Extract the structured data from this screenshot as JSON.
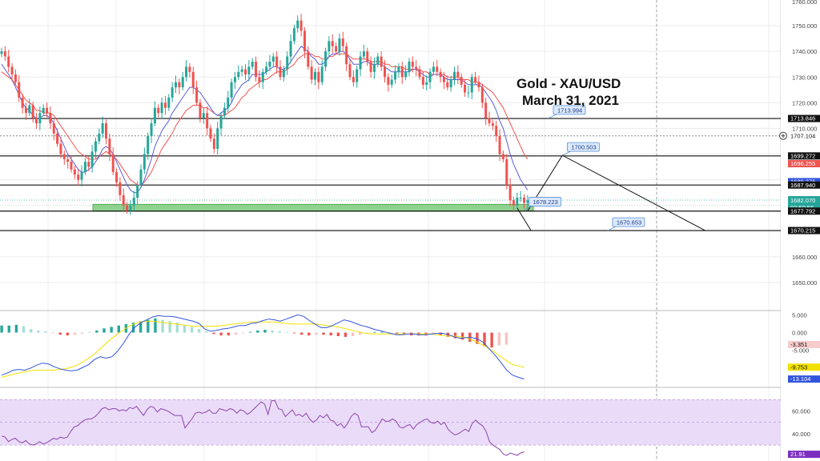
{
  "title": {
    "line1": "Gold - XAU/USD",
    "line2": "March 31, 2021"
  },
  "colors": {
    "up": "#26a69a",
    "down": "#ef5350",
    "ema_fast": "#5b5bd6",
    "ema_slow": "#ef5350",
    "zone": "#8fd18f",
    "rsi_band": "#eadcf8",
    "macd_line": "#3355dd",
    "signal_line": "#f2e000",
    "grid": "#ececec",
    "callout": "#dbe9fb"
  },
  "chart_data": {
    "type": "candlestick",
    "price_axis": {
      "ylim": [
        1640,
        1760
      ],
      "ticks": [
        "1750.000",
        "1740.000",
        "1730.000",
        "1720.000",
        "1710.000",
        "1660.000",
        "1650.000"
      ]
    },
    "ohlc_closes": [
      1740,
      1738,
      1734,
      1731,
      1728,
      1722,
      1718,
      1716,
      1719,
      1714,
      1712,
      1716,
      1718,
      1716,
      1712,
      1708,
      1704,
      1700,
      1698,
      1697,
      1694,
      1692,
      1690,
      1693,
      1697,
      1695,
      1701,
      1705,
      1708,
      1712,
      1706,
      1700,
      1693,
      1689,
      1684,
      1680,
      1678,
      1680,
      1683,
      1688,
      1694,
      1700,
      1707,
      1712,
      1718,
      1716,
      1720,
      1718,
      1722,
      1726,
      1728,
      1726,
      1730,
      1734,
      1732,
      1726,
      1720,
      1714,
      1716,
      1710,
      1706,
      1702,
      1710,
      1715,
      1718,
      1722,
      1728,
      1730,
      1732,
      1733,
      1731,
      1734,
      1736,
      1730,
      1728,
      1732,
      1734,
      1736,
      1738,
      1734,
      1730,
      1733,
      1738,
      1744,
      1749,
      1752,
      1748,
      1740,
      1734,
      1729,
      1732,
      1728,
      1734,
      1740,
      1744,
      1742,
      1740,
      1745,
      1742,
      1735,
      1730,
      1728,
      1733,
      1738,
      1740,
      1736,
      1732,
      1735,
      1738,
      1734,
      1730,
      1727,
      1729,
      1732,
      1734,
      1730,
      1732,
      1736,
      1734,
      1733,
      1730,
      1727,
      1728,
      1732,
      1734,
      1732,
      1730,
      1728,
      1726,
      1729,
      1732,
      1730,
      1727,
      1724,
      1724,
      1730,
      1728,
      1726,
      1720,
      1714,
      1712,
      1711,
      1707,
      1700,
      1698,
      1688,
      1682,
      1680,
      1683,
      1683,
      1681,
      1682
    ],
    "ema_fast_values": [
      1735,
      1733,
      1731,
      1729,
      1726,
      1723,
      1720,
      1718,
      1717,
      1715,
      1714,
      1714,
      1715,
      1715,
      1714,
      1712,
      1709,
      1706,
      1703,
      1700,
      1698,
      1696,
      1694,
      1693,
      1693,
      1694,
      1695,
      1697,
      1699,
      1702,
      1703,
      1702,
      1700,
      1697,
      1694,
      1691,
      1688,
      1686,
      1685,
      1685,
      1687,
      1690,
      1694,
      1698,
      1703,
      1706,
      1709,
      1711,
      1713,
      1716,
      1718,
      1720,
      1722,
      1724,
      1726,
      1726,
      1725,
      1724,
      1722,
      1720,
      1718,
      1716,
      1715,
      1716,
      1717,
      1718,
      1720,
      1723,
      1725,
      1727,
      1728,
      1729,
      1731,
      1731,
      1731,
      1731,
      1732,
      1733,
      1734,
      1734,
      1733,
      1733,
      1734,
      1736,
      1738,
      1740,
      1742,
      1741,
      1740,
      1738,
      1737,
      1735,
      1735,
      1736,
      1738,
      1739,
      1739,
      1740,
      1740,
      1739,
      1737,
      1735,
      1735,
      1735,
      1736,
      1736,
      1735,
      1735,
      1735,
      1735,
      1734,
      1733,
      1732,
      1732,
      1732,
      1732,
      1732,
      1732,
      1733,
      1733,
      1732,
      1731,
      1730,
      1730,
      1731,
      1731,
      1731,
      1730,
      1729,
      1729,
      1729,
      1729,
      1729,
      1728,
      1727,
      1727,
      1727,
      1727,
      1726,
      1724,
      1722,
      1720,
      1717,
      1713,
      1710,
      1705,
      1700,
      1696,
      1693,
      1690,
      1688,
      1686
    ],
    "ema_slow_values": [
      1732,
      1731,
      1730,
      1729,
      1727,
      1725,
      1723,
      1721,
      1720,
      1719,
      1717,
      1717,
      1716,
      1716,
      1716,
      1715,
      1713,
      1711,
      1709,
      1707,
      1705,
      1703,
      1701,
      1700,
      1699,
      1698,
      1698,
      1698,
      1699,
      1700,
      1701,
      1700,
      1699,
      1698,
      1696,
      1694,
      1692,
      1690,
      1689,
      1688,
      1688,
      1689,
      1691,
      1693,
      1696,
      1699,
      1702,
      1704,
      1706,
      1708,
      1711,
      1713,
      1715,
      1717,
      1718,
      1719,
      1719,
      1719,
      1718,
      1718,
      1717,
      1716,
      1715,
      1715,
      1715,
      1716,
      1717,
      1718,
      1720,
      1722,
      1723,
      1725,
      1726,
      1727,
      1728,
      1729,
      1729,
      1730,
      1731,
      1732,
      1732,
      1732,
      1733,
      1734,
      1735,
      1737,
      1738,
      1739,
      1739,
      1739,
      1738,
      1738,
      1737,
      1737,
      1738,
      1738,
      1739,
      1739,
      1739,
      1739,
      1738,
      1737,
      1737,
      1737,
      1737,
      1737,
      1736,
      1736,
      1736,
      1736,
      1735,
      1735,
      1734,
      1734,
      1734,
      1734,
      1733,
      1733,
      1733,
      1733,
      1733,
      1732,
      1732,
      1731,
      1731,
      1731,
      1731,
      1731,
      1730,
      1730,
      1730,
      1730,
      1729,
      1729,
      1729,
      1728,
      1728,
      1728,
      1727,
      1726,
      1725,
      1724,
      1722,
      1720,
      1718,
      1715,
      1712,
      1709,
      1706,
      1703,
      1700,
      1698
    ],
    "horizontal_levels": [
      1713.846,
      1707.104,
      1699.272,
      1687.94,
      1677.792,
      1670.215
    ],
    "support_zone": [
      1677.792,
      1680.4
    ],
    "callouts": [
      {
        "text": "1713.994",
        "anchor": [
          157,
          1713.9
        ]
      },
      {
        "text": "1700.503",
        "anchor": [
          161,
          1699.5
        ]
      },
      {
        "text": "1678.223",
        "anchor": [
          150,
          1678.2
        ]
      },
      {
        "text": "1670.653",
        "anchor": [
          174,
          1670.2
        ]
      }
    ],
    "projection_path": [
      [
        151,
        1677.8
      ],
      [
        161,
        1699.5
      ],
      [
        202,
        1670.2
      ]
    ],
    "projection_drop": [
      [
        148,
        1679
      ],
      [
        152,
        1670.2
      ]
    ],
    "price_tags": [
      {
        "text": "1713.846",
        "value": 1713.846,
        "bg": "#111111",
        "fg": "#ffffff"
      },
      {
        "text": "1707.104",
        "value": 1707.104,
        "bg": "#ffffff",
        "fg": "#111111"
      },
      {
        "text": "1699.272",
        "value": 1699.272,
        "bg": "#111111",
        "fg": "#ffffff"
      },
      {
        "text": "1696.255",
        "value": 1696.255,
        "bg": "#ef5350",
        "fg": "#ffffff"
      },
      {
        "text": "1689.276",
        "value": 1689.276,
        "bg": "#3355dd",
        "fg": "#ffffff"
      },
      {
        "text": "1687.940",
        "value": 1687.94,
        "bg": "#111111",
        "fg": "#ffffff"
      },
      {
        "text": "1682.070",
        "value": 1682.07,
        "bg": "#26a69a",
        "fg": "#ffffff",
        "sub": "02:50:56"
      },
      {
        "text": "1677.792",
        "value": 1677.792,
        "bg": "#111111",
        "fg": "#ffffff"
      },
      {
        "text": "1670.215",
        "value": 1670.215,
        "bg": "#111111",
        "fg": "#ffffff"
      }
    ],
    "top_tick": "1760.000",
    "macd": {
      "ylim": [
        -15,
        6
      ],
      "ticks": [
        "5.000",
        "0.000",
        "-5.000"
      ],
      "tags": [
        {
          "text": "-3.351",
          "value": -3.351,
          "bg": "#f8cccc",
          "fg": "#111111"
        },
        {
          "text": "-9.753",
          "value": -9.753,
          "bg": "#f2e000",
          "fg": "#111111"
        },
        {
          "text": "-13.104",
          "value": -13.104,
          "bg": "#3355dd",
          "fg": "#ffffff"
        }
      ],
      "histogram": [
        2,
        2,
        2.2,
        1.8,
        1,
        0.6,
        0.4,
        -0.2,
        -0.6,
        -0.8,
        -0.6,
        -0.3,
        0.2,
        0.6,
        1.2,
        1.6,
        2,
        2.4,
        2.8,
        3.2,
        3.6,
        4,
        3.6,
        3.2,
        2.8,
        2,
        1.6,
        1,
        0.4,
        -0.4,
        -0.8,
        -0.8,
        -0.6,
        -0.2,
        0.2,
        0.6,
        0.8,
        0.6,
        0.4,
        0.2,
        -0.2,
        -0.6,
        -0.8,
        -0.6,
        -0.6,
        -0.8,
        -1,
        -1.2,
        -1,
        -0.6,
        -0.2,
        0.2,
        0.2,
        0,
        -0.4,
        -0.6,
        -0.8,
        -0.8,
        -0.8,
        -0.6,
        -0.8,
        -1.2,
        -1.6,
        -2,
        -2.6,
        -3.2,
        -3.8,
        -4.2,
        -3.6,
        -3.4
      ],
      "macd_line": [
        -12,
        -11.4,
        -10.6,
        -10.4,
        -10.6,
        -10,
        -9.2,
        -8.6,
        -8.8,
        -9.6,
        -10.2,
        -10.6,
        -10.8,
        -10.6,
        -9.8,
        -9,
        -7.6,
        -6.8,
        -7.2,
        -6.8,
        -5.2,
        -3,
        -0.4,
        1.6,
        2.8,
        3.6,
        4.4,
        4.8,
        4.6,
        4.6,
        4.4,
        4,
        3.6,
        3.2,
        2.6,
        1,
        0.4,
        0.6,
        1,
        1.2,
        1.6,
        2,
        2,
        2.6,
        2.8,
        3.4,
        3.8,
        3.6,
        3.2,
        3.8,
        4.4,
        5,
        4.6,
        3.4,
        2.4,
        1.4,
        1.4,
        2,
        2.8,
        3.6,
        3.2,
        2.6,
        2,
        1.6,
        1,
        0.6,
        0.2,
        -0.2,
        -0.6,
        -0.6,
        -0.4,
        -0.4,
        -0.6,
        -0.6,
        -0.4,
        -0.2,
        -0.2,
        -0.6,
        -1.2,
        -1.6,
        -1.4,
        -1.4,
        -1.8,
        -2.8,
        -4.6,
        -6.4,
        -8.4,
        -10.6,
        -12,
        -12.6,
        -13.1
      ],
      "signal_line": [
        -12.6,
        -12.2,
        -11.8,
        -11.4,
        -11,
        -10.8,
        -10.6,
        -10.6,
        -10.6,
        -10.6,
        -10.4,
        -10.2,
        -9.8,
        -9.2,
        -8.2,
        -7.2,
        -6,
        -4.6,
        -3,
        -1.6,
        -0.4,
        0.8,
        1.8,
        2.6,
        3,
        3.2,
        3.2,
        3,
        2.8,
        2.6,
        2.4,
        2.2,
        2,
        1.8,
        1.8,
        1.8,
        1.8,
        1.8,
        2,
        2.2,
        2.4,
        2.6,
        2.8,
        3,
        3,
        3,
        3,
        3,
        2.8,
        2.6,
        2.4,
        2.4,
        2.4,
        2.4,
        2.4,
        2.2,
        2,
        1.8,
        1.6,
        1.2,
        0.8,
        0.4,
        0,
        -0.2,
        -0.4,
        -0.4,
        -0.4,
        -0.4,
        -0.4,
        -0.4,
        -0.4,
        -0.4,
        -0.4,
        -0.4,
        -0.4,
        -0.6,
        -0.8,
        -1,
        -1,
        -1.2,
        -1.4,
        -2,
        -2.8,
        -3.6,
        -4.6,
        -5.6,
        -6.8,
        -8,
        -9,
        -9.4,
        -9.8
      ]
    },
    "rsi": {
      "ylim": [
        16,
        80
      ],
      "band": [
        30,
        70
      ],
      "ticks": [
        "60.000",
        "40.000"
      ],
      "tag": {
        "text": "21.91",
        "value": 21.91,
        "bg": "#7b2fbf",
        "fg": "#ffffff"
      },
      "values": [
        38,
        37,
        33,
        35,
        36,
        33,
        32,
        34,
        31,
        30,
        31,
        33,
        31,
        32,
        34,
        36,
        35,
        37,
        36,
        37,
        42,
        46,
        47,
        50,
        52,
        53,
        53,
        55,
        58,
        62,
        63,
        61,
        62,
        62,
        60,
        61,
        60,
        63,
        62,
        64,
        60,
        56,
        61,
        64,
        63,
        59,
        62,
        61,
        60,
        58,
        56,
        56,
        56,
        45,
        49,
        53,
        58,
        59,
        58,
        59,
        61,
        58,
        58,
        62,
        61,
        60,
        62,
        61,
        58,
        61,
        60,
        57,
        59,
        62,
        65,
        68,
        66,
        57,
        69,
        69,
        62,
        61,
        55,
        58,
        61,
        56,
        57,
        55,
        58,
        53,
        50,
        52,
        56,
        54,
        57,
        52,
        51,
        47,
        49,
        45,
        49,
        55,
        58,
        56,
        46,
        46,
        46,
        41,
        43,
        48,
        53,
        51,
        51,
        53,
        51,
        46,
        45,
        47,
        48,
        44,
        48,
        50,
        52,
        53,
        50,
        49,
        51,
        48,
        50,
        44,
        41,
        39,
        40,
        42,
        44,
        42,
        49,
        52,
        49,
        47,
        42,
        33,
        30,
        28,
        26,
        22,
        21,
        23,
        22,
        21,
        23,
        24
      ]
    }
  }
}
